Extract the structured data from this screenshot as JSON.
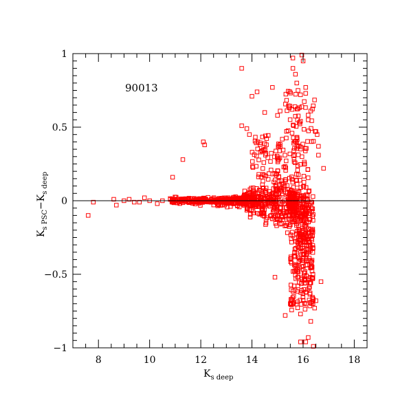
{
  "chart_data": {
    "type": "scatter",
    "annotation": "90013",
    "xlabel": {
      "main": "K",
      "sub": "s deep"
    },
    "ylabel": {
      "main1": "K",
      "sub1": "s PSC",
      "sep": "−",
      "main2": "K",
      "sub2": "s deep"
    },
    "xlim": [
      7.0,
      18.5
    ],
    "ylim": [
      -1.0,
      1.0
    ],
    "x_major_ticks": [
      8,
      10,
      12,
      14,
      16,
      18
    ],
    "x_tick_labels": [
      "8",
      "10",
      "12",
      "14",
      "16",
      "18"
    ],
    "y_major_ticks": [
      -1,
      -0.5,
      0,
      0.5,
      1
    ],
    "y_tick_labels": [
      "−1",
      "−0.5",
      "0",
      "0.5",
      "1"
    ],
    "reference_line_y": 0,
    "marker": "open-square",
    "color": "#ff0000",
    "highlighted_points": [
      [
        7.6,
        -0.1
      ],
      [
        7.8,
        -0.01
      ],
      [
        8.6,
        0.01
      ],
      [
        8.7,
        -0.03
      ],
      [
        9.0,
        0.0
      ],
      [
        9.2,
        0.01
      ],
      [
        9.4,
        -0.01
      ],
      [
        9.6,
        -0.01
      ],
      [
        9.8,
        0.02
      ],
      [
        10.0,
        0.0
      ],
      [
        10.3,
        -0.02
      ],
      [
        10.5,
        0.0
      ],
      [
        10.9,
        0.16
      ],
      [
        11.3,
        0.28
      ],
      [
        12.1,
        0.4
      ],
      [
        12.15,
        0.38
      ],
      [
        13.6,
        0.9
      ],
      [
        13.6,
        0.51
      ],
      [
        13.8,
        0.49
      ],
      [
        13.9,
        0.45
      ],
      [
        14.0,
        0.71
      ],
      [
        14.2,
        0.74
      ],
      [
        14.5,
        0.6
      ],
      [
        14.8,
        0.77
      ],
      [
        15.0,
        0.58
      ],
      [
        15.1,
        0.61
      ],
      [
        15.6,
        0.97
      ],
      [
        15.6,
        0.9
      ],
      [
        15.7,
        0.86
      ],
      [
        15.75,
        0.8
      ],
      [
        15.8,
        0.75
      ],
      [
        15.9,
        0.72
      ],
      [
        15.95,
        0.99
      ],
      [
        16.0,
        0.95
      ],
      [
        16.1,
        0.77
      ],
      [
        16.1,
        0.73
      ],
      [
        16.2,
        0.55
      ],
      [
        16.3,
        0.61
      ],
      [
        16.5,
        0.47
      ],
      [
        16.55,
        0.45
      ],
      [
        16.6,
        0.37
      ],
      [
        16.6,
        0.31
      ],
      [
        16.8,
        0.22
      ],
      [
        16.7,
        -0.55
      ],
      [
        16.5,
        -0.68
      ],
      [
        16.45,
        -0.73
      ],
      [
        16.3,
        -0.82
      ],
      [
        16.2,
        -0.93
      ],
      [
        16.1,
        -0.96
      ],
      [
        15.9,
        -0.96
      ],
      [
        16.4,
        -0.99
      ],
      [
        15.9,
        -0.77
      ],
      [
        15.3,
        -0.78
      ],
      [
        14.9,
        -0.52
      ],
      [
        15.5,
        -0.7
      ]
    ]
  }
}
